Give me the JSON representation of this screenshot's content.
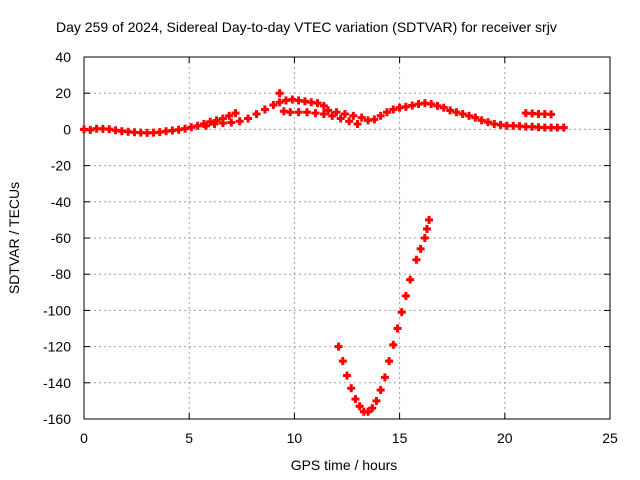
{
  "chart_data": {
    "type": "scatter",
    "title": "Day 259 of 2024, Sidereal Day-to-day VTEC variation (SDTVAR) for receiver srjv",
    "xlabel": "GPS time / hours",
    "ylabel": "SDTVAR / TECUs",
    "xlim": [
      0,
      25
    ],
    "ylim": [
      -160,
      40
    ],
    "x_ticks": [
      0,
      5,
      10,
      15,
      20,
      25
    ],
    "y_ticks": [
      40,
      20,
      0,
      -20,
      -40,
      -60,
      -80,
      -100,
      -120,
      -140,
      -160
    ],
    "grid": true,
    "marker": "plus",
    "color": "#ff0000",
    "series": [
      {
        "name": "",
        "points": [
          [
            0.0,
            0.0
          ],
          [
            0.3,
            -0.3
          ],
          [
            0.6,
            0.4
          ],
          [
            0.9,
            0.3
          ],
          [
            1.2,
            0.1
          ],
          [
            1.5,
            -0.5
          ],
          [
            1.8,
            -1.0
          ],
          [
            2.1,
            -1.3
          ],
          [
            2.4,
            -1.6
          ],
          [
            2.7,
            -1.8
          ],
          [
            3.0,
            -1.9
          ],
          [
            3.3,
            -1.8
          ],
          [
            3.6,
            -1.5
          ],
          [
            3.9,
            -1.0
          ],
          [
            4.2,
            -0.6
          ],
          [
            4.5,
            -0.2
          ],
          [
            4.8,
            0.4
          ],
          [
            5.1,
            1.2
          ],
          [
            5.4,
            2.0
          ],
          [
            5.7,
            3.0
          ],
          [
            6.0,
            4.2
          ],
          [
            6.3,
            5.0
          ],
          [
            6.6,
            6.0
          ],
          [
            6.9,
            7.5
          ],
          [
            7.2,
            9.0
          ],
          [
            5.8,
            2.0
          ],
          [
            6.2,
            3.0
          ],
          [
            6.6,
            3.5
          ],
          [
            7.0,
            3.8
          ],
          [
            7.4,
            4.5
          ],
          [
            7.8,
            6.0
          ],
          [
            8.2,
            8.5
          ],
          [
            8.6,
            11.0
          ],
          [
            9.0,
            13.5
          ],
          [
            9.3,
            15.0
          ],
          [
            9.6,
            16.0
          ],
          [
            9.9,
            16.5
          ],
          [
            10.2,
            16.0
          ],
          [
            10.5,
            15.5
          ],
          [
            10.8,
            15.0
          ],
          [
            11.1,
            14.5
          ],
          [
            11.4,
            13.0
          ],
          [
            9.3,
            20.0
          ],
          [
            9.5,
            10.0
          ],
          [
            9.8,
            9.5
          ],
          [
            10.2,
            9.5
          ],
          [
            10.6,
            9.5
          ],
          [
            11.0,
            9.0
          ],
          [
            11.4,
            8.5
          ],
          [
            11.8,
            7.5
          ],
          [
            12.2,
            6.0
          ],
          [
            12.6,
            4.5
          ],
          [
            13.0,
            3.0
          ],
          [
            11.6,
            10.5
          ],
          [
            12.0,
            9.5
          ],
          [
            12.4,
            8.5
          ],
          [
            12.8,
            7.5
          ],
          [
            13.2,
            6.5
          ],
          [
            13.5,
            5.0
          ],
          [
            13.8,
            5.5
          ],
          [
            14.1,
            7.5
          ],
          [
            14.4,
            9.5
          ],
          [
            14.7,
            11.0
          ],
          [
            15.0,
            12.0
          ],
          [
            15.3,
            12.5
          ],
          [
            15.6,
            13.2
          ],
          [
            15.9,
            14.0
          ],
          [
            16.2,
            14.5
          ],
          [
            16.5,
            14.0
          ],
          [
            16.8,
            13.0
          ],
          [
            17.1,
            12.0
          ],
          [
            17.4,
            10.5
          ],
          [
            17.7,
            9.5
          ],
          [
            18.0,
            8.5
          ],
          [
            18.3,
            7.5
          ],
          [
            18.6,
            6.5
          ],
          [
            18.9,
            5.0
          ],
          [
            19.2,
            4.0
          ],
          [
            19.5,
            3.0
          ],
          [
            19.8,
            2.5
          ],
          [
            20.1,
            2.0
          ],
          [
            20.4,
            2.0
          ],
          [
            20.7,
            1.8
          ],
          [
            21.0,
            1.5
          ],
          [
            21.3,
            1.5
          ],
          [
            21.6,
            1.2
          ],
          [
            21.9,
            1.0
          ],
          [
            22.2,
            1.0
          ],
          [
            22.5,
            1.0
          ],
          [
            22.8,
            1.0
          ],
          [
            21.0,
            9.0
          ],
          [
            21.3,
            8.8
          ],
          [
            21.6,
            8.5
          ],
          [
            21.9,
            8.5
          ],
          [
            22.2,
            8.3
          ],
          [
            12.1,
            -120
          ],
          [
            12.3,
            -128
          ],
          [
            12.5,
            -136
          ],
          [
            12.7,
            -143
          ],
          [
            12.9,
            -149
          ],
          [
            13.1,
            -153
          ],
          [
            13.3,
            -156
          ],
          [
            13.5,
            -156
          ],
          [
            13.7,
            -154
          ],
          [
            13.9,
            -150
          ],
          [
            14.1,
            -144
          ],
          [
            14.3,
            -137
          ],
          [
            14.5,
            -128
          ],
          [
            14.7,
            -119
          ],
          [
            14.9,
            -110
          ],
          [
            15.1,
            -101
          ],
          [
            15.3,
            -92
          ],
          [
            15.5,
            -83
          ],
          [
            15.8,
            -72
          ],
          [
            16.0,
            -66
          ],
          [
            16.2,
            -60
          ],
          [
            16.3,
            -55
          ],
          [
            16.4,
            -50
          ]
        ]
      }
    ]
  }
}
